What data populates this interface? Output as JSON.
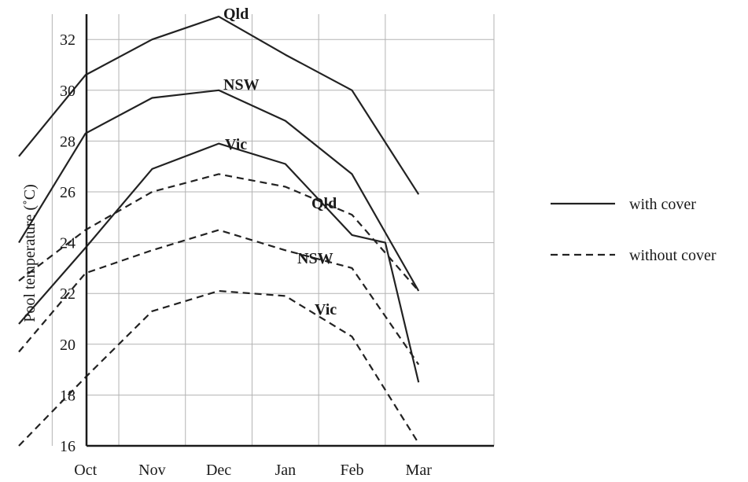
{
  "chart_data": {
    "type": "line",
    "title": "",
    "xlabel": "",
    "ylabel": "Pool temperature (˚C)",
    "categories": [
      "Oct",
      "Nov",
      "Dec",
      "Jan",
      "Feb",
      "Mar"
    ],
    "x": [
      0,
      1,
      2,
      3,
      4,
      5,
      6,
      7,
      8,
      9,
      10,
      11,
      12
    ],
    "ylim": [
      16,
      33
    ],
    "yticks": [
      16,
      18,
      20,
      22,
      24,
      26,
      28,
      30,
      32
    ],
    "grid": true,
    "legend": {
      "placement": "right",
      "entries": [
        {
          "label": "with cover",
          "style": "solid"
        },
        {
          "label": "without cover",
          "style": "dashed"
        }
      ]
    },
    "series": [
      {
        "name": "Qld",
        "style": "solid",
        "color": "#222222",
        "x": [
          0,
          2,
          4,
          6,
          8,
          10,
          12
        ],
        "values": [
          27.4,
          30.6,
          32.0,
          32.9,
          31.4,
          30.0,
          25.9
        ]
      },
      {
        "name": "NSW",
        "style": "solid",
        "color": "#222222",
        "x": [
          0,
          2,
          4,
          6,
          8,
          10,
          12
        ],
        "values": [
          24.0,
          28.3,
          29.7,
          30.0,
          28.8,
          26.7,
          22.1
        ]
      },
      {
        "name": "Vic",
        "style": "solid",
        "color": "#222222",
        "x": [
          0,
          2,
          4,
          6,
          8,
          10,
          11,
          12
        ],
        "values": [
          20.8,
          23.8,
          26.9,
          27.9,
          27.1,
          24.3,
          24.0,
          18.5
        ]
      },
      {
        "name": "Qld",
        "style": "dashed",
        "color": "#222222",
        "x": [
          0,
          2,
          4,
          6,
          8,
          10,
          12
        ],
        "values": [
          22.5,
          24.5,
          26.0,
          26.7,
          26.2,
          25.1,
          22.1
        ]
      },
      {
        "name": "NSW",
        "style": "dashed",
        "color": "#222222",
        "x": [
          0,
          2,
          4,
          6,
          8,
          10,
          12
        ],
        "values": [
          19.7,
          22.8,
          23.7,
          24.5,
          23.7,
          23.0,
          19.2
        ]
      },
      {
        "name": "Vic",
        "style": "dashed",
        "color": "#222222",
        "x": [
          0,
          2,
          4,
          6,
          8,
          10,
          12
        ],
        "values": [
          16.0,
          18.7,
          21.3,
          22.1,
          21.9,
          20.3,
          16.1
        ]
      }
    ]
  }
}
